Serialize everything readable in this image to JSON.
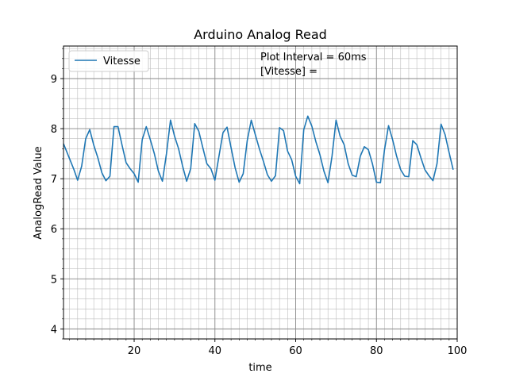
{
  "chart_data": {
    "type": "line",
    "title": "Arduino Analog Read",
    "xlabel": "time",
    "ylabel": "AnalogRead Value",
    "xlim": [
      2.5,
      100
    ],
    "ylim": [
      3.8,
      9.65
    ],
    "xticks": [
      20,
      40,
      60,
      80,
      100
    ],
    "yticks": [
      4,
      5,
      6,
      7,
      8,
      9
    ],
    "x_minor_step": 2,
    "y_minor_step": 0.2,
    "grid": true,
    "legend_position": "top-left",
    "annotations": [
      "Plot Interval = 60ms",
      "[Vitesse] ="
    ],
    "series": [
      {
        "name": "Vitesse",
        "color": "#1f77b4",
        "x": [
          2.5,
          4,
          5,
          6,
          7,
          8,
          9,
          10,
          11,
          12,
          13,
          14,
          15,
          16,
          17,
          18,
          19,
          20,
          21,
          22,
          23,
          24,
          25,
          26,
          27,
          28,
          29,
          30,
          31,
          32,
          33,
          34,
          35,
          36,
          37,
          38,
          39,
          40,
          41,
          42,
          43,
          44,
          45,
          46,
          47,
          48,
          49,
          50,
          51,
          52,
          53,
          54,
          55,
          56,
          57,
          58,
          59,
          60,
          61,
          62,
          63,
          64,
          65,
          66,
          67,
          68,
          69,
          70,
          71,
          72,
          73,
          74,
          75,
          76,
          77,
          78,
          79,
          80,
          81,
          82,
          83,
          84,
          85,
          86,
          87,
          88,
          89,
          90,
          91,
          92,
          93,
          94,
          95,
          96,
          97,
          98,
          99
        ],
        "values": [
          7.7,
          7.4,
          7.2,
          6.97,
          7.25,
          7.8,
          7.98,
          7.67,
          7.42,
          7.12,
          6.96,
          7.05,
          8.04,
          8.04,
          7.67,
          7.32,
          7.2,
          7.1,
          6.93,
          7.78,
          8.04,
          7.78,
          7.5,
          7.15,
          6.95,
          7.5,
          8.17,
          7.85,
          7.6,
          7.25,
          6.95,
          7.2,
          8.1,
          7.95,
          7.62,
          7.3,
          7.2,
          6.97,
          7.45,
          7.92,
          8.03,
          7.62,
          7.22,
          6.93,
          7.1,
          7.76,
          8.17,
          7.88,
          7.6,
          7.35,
          7.08,
          6.95,
          7.06,
          8.02,
          7.96,
          7.55,
          7.38,
          7.05,
          6.9,
          7.98,
          8.25,
          8.05,
          7.74,
          7.48,
          7.15,
          6.92,
          7.45,
          8.17,
          7.85,
          7.68,
          7.3,
          7.07,
          7.04,
          7.45,
          7.64,
          7.58,
          7.3,
          6.93,
          6.92,
          7.58,
          8.06,
          7.78,
          7.45,
          7.18,
          7.05,
          7.04,
          7.76,
          7.68,
          7.42,
          7.18,
          7.06,
          6.96,
          7.3,
          8.09,
          7.88,
          7.52,
          7.18
        ]
      }
    ]
  }
}
